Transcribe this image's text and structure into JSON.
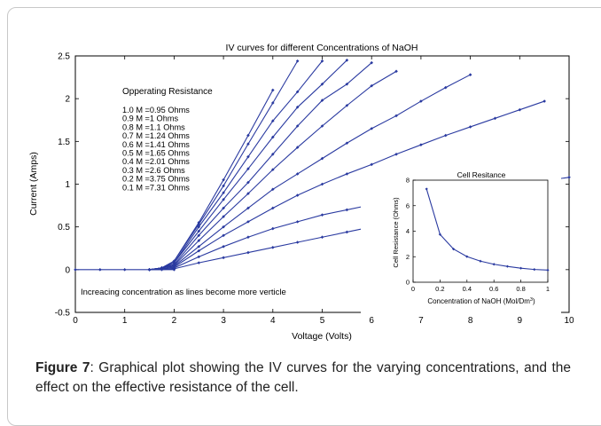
{
  "chart_data": [
    {
      "type": "line",
      "title": "IV curves for different Concentrations of NaOH",
      "xlabel": "Voltage (Volts)",
      "ylabel": "Current (Amps)",
      "xlim": [
        0,
        10
      ],
      "ylim": [
        -0.5,
        2.5
      ],
      "xticks": [
        "0",
        "1",
        "2",
        "3",
        "4",
        "5",
        "6",
        "7",
        "8",
        "9",
        "10"
      ],
      "yticks": [
        "-0.5",
        "0",
        "0.5",
        "1",
        "1.5",
        "2",
        "2.5"
      ],
      "grid": false,
      "line_color": "#2a3aa0",
      "legend_title": "Opperating Resistance",
      "legend": [
        "1.0 M =0.95 Ohms",
        "0.9 M =1 Ohms",
        "0.8 M =1.1 Ohms",
        "0.7 M =1.24 Ohms",
        "0.6 M =1.41 Ohms",
        "0.5 M =1.65 Ohms",
        "0.4 M =2.01 Ohms",
        "0.3 M =2.6 Ohms",
        "0.2 M =3.75 Ohms",
        "0.1 M =7.31 Ohms"
      ],
      "annotation": "Increacing concentration as lines become more verticle",
      "x_baseline": [
        0,
        0.5,
        1,
        1.5,
        2
      ],
      "y_baseline": [
        0,
        0,
        0,
        0,
        0
      ],
      "series": [
        {
          "x": [
            1.5,
            1.75,
            2,
            2.5,
            3,
            3.5,
            4
          ],
          "y": [
            0,
            0.02,
            0.1,
            0.55,
            1.05,
            1.57,
            2.1
          ]
        },
        {
          "x": [
            1.5,
            1.75,
            2,
            2.5,
            3,
            3.5,
            4,
            4.5
          ],
          "y": [
            0,
            0.02,
            0.1,
            0.53,
            0.98,
            1.47,
            1.95,
            2.44
          ]
        },
        {
          "x": [
            1.5,
            1.75,
            2,
            2.5,
            3,
            3.5,
            4,
            4.5,
            5
          ],
          "y": [
            0,
            0.02,
            0.08,
            0.5,
            0.9,
            1.32,
            1.74,
            2.08,
            2.44
          ]
        },
        {
          "x": [
            1.5,
            1.75,
            2,
            2.5,
            3,
            3.5,
            4,
            4.5,
            5,
            5.5
          ],
          "y": [
            0,
            0.02,
            0.08,
            0.45,
            0.82,
            1.18,
            1.55,
            1.9,
            2.17,
            2.45
          ]
        },
        {
          "x": [
            1.5,
            1.75,
            2,
            2.5,
            3,
            3.5,
            4,
            4.5,
            5,
            5.5,
            6
          ],
          "y": [
            0,
            0.02,
            0.06,
            0.4,
            0.72,
            1.02,
            1.35,
            1.68,
            1.98,
            2.17,
            2.42
          ]
        },
        {
          "x": [
            1.5,
            1.75,
            2,
            2.5,
            3,
            3.5,
            4,
            4.5,
            5,
            5.5,
            6,
            6.5
          ],
          "y": [
            0,
            0.02,
            0.05,
            0.34,
            0.62,
            0.89,
            1.17,
            1.43,
            1.68,
            1.92,
            2.15,
            2.32
          ]
        },
        {
          "x": [
            1.5,
            1.75,
            2,
            2.5,
            3,
            3.5,
            4,
            4.5,
            5,
            5.5,
            6,
            6.5,
            7,
            7.5,
            8
          ],
          "y": [
            0,
            0.02,
            0.04,
            0.27,
            0.5,
            0.72,
            0.94,
            1.12,
            1.3,
            1.48,
            1.65,
            1.8,
            1.97,
            2.13,
            2.28
          ]
        },
        {
          "x": [
            1.5,
            1.75,
            2,
            2.5,
            3,
            3.5,
            4,
            4.5,
            5,
            5.5,
            6,
            6.5,
            7,
            7.5,
            8,
            8.5,
            9,
            9.5
          ],
          "y": [
            0,
            0.01,
            0.03,
            0.22,
            0.4,
            0.56,
            0.72,
            0.87,
            1.0,
            1.12,
            1.23,
            1.35,
            1.46,
            1.57,
            1.67,
            1.77,
            1.87,
            1.97
          ]
        },
        {
          "x": [
            1.5,
            1.75,
            2,
            2.5,
            3,
            3.5,
            4,
            4.5,
            5,
            5.5,
            6,
            6.5,
            7,
            7.5,
            8,
            8.5,
            9,
            9.5,
            10
          ],
          "y": [
            0,
            0.01,
            0.02,
            0.15,
            0.27,
            0.38,
            0.48,
            0.56,
            0.64,
            0.7,
            0.76,
            0.82,
            0.86,
            0.9,
            0.94,
            0.98,
            1.01,
            1.04,
            1.08
          ]
        },
        {
          "x": [
            1.5,
            1.75,
            2,
            2.5,
            3,
            3.5,
            4,
            4.5,
            5,
            5.5,
            6
          ],
          "y": [
            0,
            0,
            0.01,
            0.08,
            0.14,
            0.2,
            0.26,
            0.32,
            0.38,
            0.44,
            0.5
          ]
        }
      ]
    },
    {
      "type": "line",
      "title": "Cell Resitance",
      "xlabel": "Concentration of NaOH (Mol/Dm",
      "xlabel_sup": "3",
      "xlabel_end": ")",
      "ylabel": "Cell Resistance (Ohms)",
      "xlim": [
        0,
        1
      ],
      "ylim": [
        0,
        8
      ],
      "xticks": [
        "0",
        "0.2",
        "0.4",
        "0.6",
        "0.8",
        "1"
      ],
      "yticks": [
        "0",
        "2",
        "4",
        "6",
        "8"
      ],
      "x": [
        0.1,
        0.2,
        0.3,
        0.4,
        0.5,
        0.6,
        0.7,
        0.8,
        0.9,
        1.0
      ],
      "y": [
        7.31,
        3.75,
        2.6,
        2.01,
        1.65,
        1.41,
        1.24,
        1.1,
        1.0,
        0.95
      ]
    }
  ],
  "caption": {
    "label": "Figure 7",
    "text": ": Graphical plot showing the IV curves for the varying concentrations, and the effect on the effective resistance of the cell."
  }
}
